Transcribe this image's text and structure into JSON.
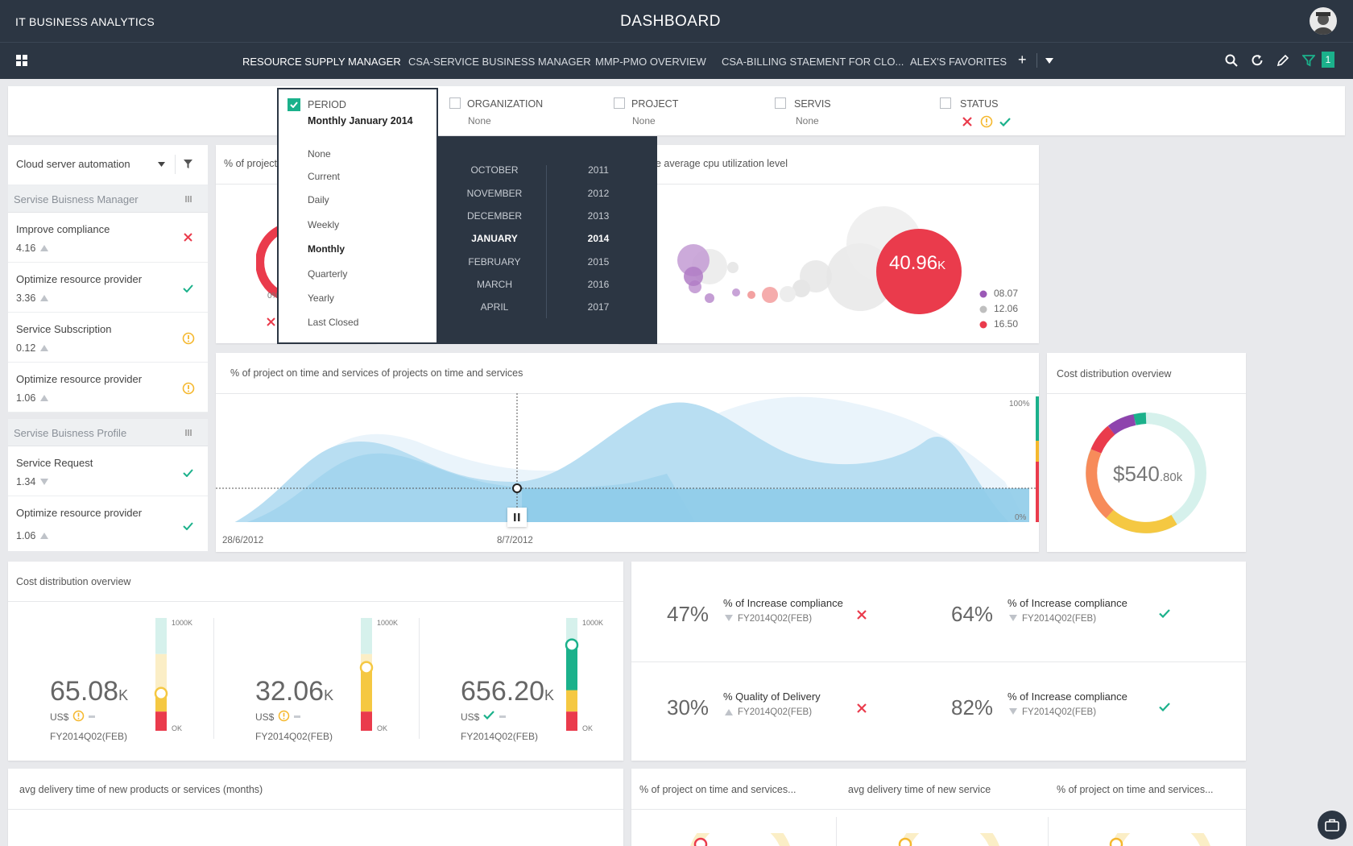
{
  "header": {
    "app_name": "IT BUSINESS ANALYTICS",
    "title": "DASHBOARD"
  },
  "nav": {
    "tabs": [
      "RESOURCE SUPPLY MANAGER",
      "CSA-SERVICE BUSINESS MANAGER",
      "MMP-PMO OVERVIEW",
      "CSA-BILLING STAEMENT FOR CLO...",
      "ALEX'S FAVORITES"
    ],
    "add": "+",
    "filter_count": "1"
  },
  "filters": {
    "period": {
      "label": "PERIOD",
      "value": "Monthly January 2014"
    },
    "organization": {
      "label": "ORGANIZATION",
      "value": "None"
    },
    "project": {
      "label": "PROJECT",
      "value": "None"
    },
    "servis": {
      "label": "SERVIS",
      "value": "None"
    },
    "status": {
      "label": "STATUS"
    }
  },
  "period_menu": {
    "options": [
      "None",
      "Current",
      "Daily",
      "Weekly",
      "Monthly",
      "Quarterly",
      "Yearly",
      "Last Closed"
    ],
    "selected": "Monthly",
    "months": [
      "OCTOBER",
      "NOVEMBER",
      "DECEMBER",
      "JANUARY",
      "FEBRUARY",
      "MARCH",
      "APRIL"
    ],
    "years": [
      "2011",
      "2012",
      "2013",
      "2014",
      "2015",
      "2016",
      "2017"
    ],
    "selected_month": "JANUARY",
    "selected_year": "2014"
  },
  "sidebar": {
    "dropdown": "Cloud server automation",
    "groups": [
      {
        "label": "Servise Buisness Manager",
        "items": [
          {
            "title": "Improve compliance",
            "value": "4.16",
            "trend": "up",
            "status": "x"
          },
          {
            "title": "Optimize resource provider",
            "value": "3.36",
            "trend": "up",
            "status": "check"
          },
          {
            "title": "Service Subscription",
            "value": "0.12",
            "trend": "up",
            "status": "warn"
          },
          {
            "title": "Optimize resource provider",
            "value": "1.06",
            "trend": "up",
            "status": "warn"
          }
        ]
      },
      {
        "label": "Servise Buisness Profile",
        "items": [
          {
            "title": "Service Request",
            "value": "1.34",
            "trend": "down",
            "status": "check"
          },
          {
            "title": "Optimize resource provider",
            "value": "1.06",
            "trend": "up",
            "status": "check"
          }
        ]
      }
    ]
  },
  "cards": {
    "project_pct_title": "% of project",
    "project_pct_axis": "0%",
    "cpu_title": "e average cpu utilization level",
    "cpu_big_value": "40.96",
    "cpu_big_unit": "K",
    "cpu_legend": [
      {
        "label": "08.07",
        "color": "#9b59b6"
      },
      {
        "label": "12.06",
        "color": "#bfbfbf"
      },
      {
        "label": "16.50",
        "color": "#ea3b4c"
      }
    ],
    "area_title": "% of project on time and services of projects on time and services",
    "area_x_start": "28/6/2012",
    "area_x_marker": "8/7/2012",
    "area_y_top": "100%",
    "area_y_bottom": "0%",
    "cost_donut_title": "Cost distribution overview",
    "cost_donut_value": "$540",
    "cost_donut_unit": ".80k",
    "cost_overview_title": "Cost distribution overview",
    "gauge_max_label": "1000K",
    "gauge_min_label": "OK",
    "gauges": [
      {
        "value": "65.08",
        "unit": "K",
        "currency": "US$",
        "status": "warn",
        "period": "FY2014Q02(FEB)",
        "level": 0.33
      },
      {
        "value": "32.06",
        "unit": "K",
        "currency": "US$",
        "status": "warn",
        "period": "FY2014Q02(FEB)",
        "level": 0.56
      },
      {
        "value": "656.20",
        "unit": "K",
        "currency": "US$",
        "status": "check",
        "period": "FY2014Q02(FEB)",
        "level": 0.76
      }
    ],
    "kpis": [
      {
        "pct": "47%",
        "label": "% of Increase compliance",
        "sub": "FY2014Q02(FEB)",
        "trend": "down",
        "status": "x"
      },
      {
        "pct": "64%",
        "label": "% of Increase compliance",
        "sub": "FY2014Q02(FEB)",
        "trend": "down",
        "status": "check"
      },
      {
        "pct": "30%",
        "label": "% Quality of Delivery",
        "sub": "FY2014Q02(FEB)",
        "trend": "up",
        "status": "x"
      },
      {
        "pct": "82%",
        "label": "% of Increase compliance",
        "sub": "FY2014Q02(FEB)",
        "trend": "down",
        "status": "check"
      }
    ],
    "delivery_title": "avg delivery time of new products or services (months)",
    "bottom_titles": [
      "% of project on time and services...",
      "avg delivery time of new service",
      "% of project on time and services..."
    ]
  },
  "colors": {
    "dark": "#2c3643",
    "red": "#ea3b4c",
    "green": "#1bb18b",
    "yellow": "#f5b82e",
    "blue": "#8fcce9",
    "purple": "#9b59b6"
  }
}
